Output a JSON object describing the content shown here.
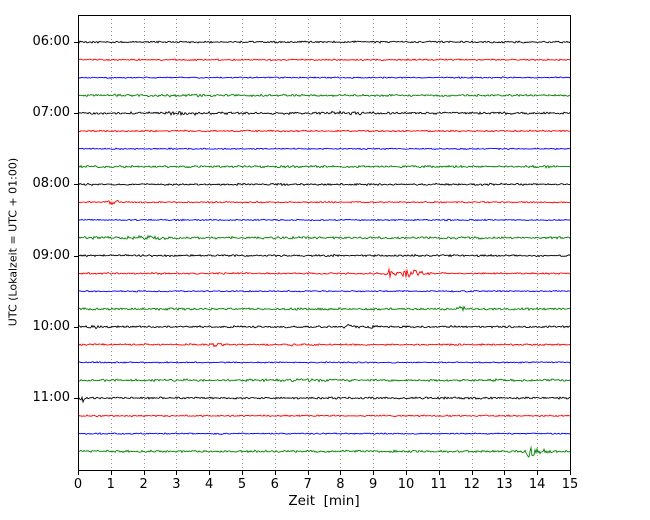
{
  "chart_data": {
    "type": "line",
    "subtype": "helicorder-seismogram",
    "title": "",
    "xlabel": "Zeit  [min]",
    "ylabel": "UTC (Lokalzeit = UTC + 01:00)",
    "x_min": 0,
    "x_max": 15,
    "minutes_per_line": 15,
    "grid": {
      "vertical": true,
      "style": "dotted",
      "color": "#9a9a9a"
    },
    "x_ticks": [
      "0",
      "1",
      "2",
      "3",
      "4",
      "5",
      "6",
      "7",
      "8",
      "9",
      "10",
      "11",
      "12",
      "13",
      "14",
      "15"
    ],
    "hour_labels": [
      "06:00",
      "07:00",
      "08:00",
      "09:00",
      "10:00",
      "11:00"
    ],
    "colors": {
      "black": "#000000",
      "red": "#ff0000",
      "blue": "#0000ff",
      "green": "#008000"
    },
    "traces": [
      {
        "start": "06:00",
        "color": "black",
        "noise": 0.8,
        "events": []
      },
      {
        "start": "06:15",
        "color": "red",
        "noise": 0.7,
        "events": []
      },
      {
        "start": "06:30",
        "color": "blue",
        "noise": 0.6,
        "events": []
      },
      {
        "start": "06:45",
        "color": "green",
        "noise": 0.95,
        "events": [
          {
            "t": 2.6,
            "amp": 0.5,
            "sigma": 0.7
          }
        ]
      },
      {
        "start": "07:00",
        "color": "black",
        "noise": 1.0,
        "events": [
          {
            "t": 3.3,
            "amp": 0.6,
            "sigma": 0.7
          },
          {
            "t": 7.9,
            "amp": 0.9,
            "sigma": 0.45
          }
        ]
      },
      {
        "start": "07:15",
        "color": "red",
        "noise": 0.7,
        "events": []
      },
      {
        "start": "07:30",
        "color": "blue",
        "noise": 0.6,
        "events": []
      },
      {
        "start": "07:45",
        "color": "green",
        "noise": 0.95,
        "events": []
      },
      {
        "start": "08:00",
        "color": "black",
        "noise": 0.85,
        "events": []
      },
      {
        "start": "08:15",
        "color": "red",
        "noise": 0.7,
        "events": [
          {
            "t": 1.05,
            "amp": 2.0,
            "sigma": 0.12
          }
        ]
      },
      {
        "start": "08:30",
        "color": "blue",
        "noise": 0.6,
        "events": []
      },
      {
        "start": "08:45",
        "color": "green",
        "noise": 1.0,
        "events": [
          {
            "t": 2.2,
            "amp": 0.6,
            "sigma": 0.6
          }
        ]
      },
      {
        "start": "09:00",
        "color": "black",
        "noise": 0.85,
        "events": [
          {
            "t": 7.9,
            "amp": 1.6,
            "sigma": 0.1
          }
        ]
      },
      {
        "start": "09:15",
        "color": "red",
        "noise": 0.75,
        "events": [
          {
            "t": 9.45,
            "amp": 3.2,
            "sigma": 0.13
          },
          {
            "t": 10.15,
            "amp": 3.8,
            "sigma": 0.2
          },
          {
            "t": 10.55,
            "amp": 1.4,
            "sigma": 0.12
          }
        ]
      },
      {
        "start": "09:30",
        "color": "blue",
        "noise": 0.6,
        "events": []
      },
      {
        "start": "09:45",
        "color": "green",
        "noise": 0.95,
        "events": [
          {
            "t": 11.7,
            "amp": 1.8,
            "sigma": 0.09
          }
        ]
      },
      {
        "start": "10:00",
        "color": "black",
        "noise": 0.9,
        "events": [
          {
            "t": 0.55,
            "amp": 1.5,
            "sigma": 0.12
          },
          {
            "t": 8.25,
            "amp": 1.3,
            "sigma": 0.15
          },
          {
            "t": 8.9,
            "amp": 1.1,
            "sigma": 0.1
          }
        ]
      },
      {
        "start": "10:15",
        "color": "red",
        "noise": 0.75,
        "events": [
          {
            "t": 4.25,
            "amp": 1.9,
            "sigma": 0.1
          },
          {
            "t": 6.5,
            "amp": 1.9,
            "sigma": 0.09
          }
        ]
      },
      {
        "start": "10:30",
        "color": "blue",
        "noise": 0.6,
        "events": []
      },
      {
        "start": "10:45",
        "color": "green",
        "noise": 1.0,
        "events": [
          {
            "t": 6.8,
            "amp": 0.7,
            "sigma": 0.5
          }
        ]
      },
      {
        "start": "11:00",
        "color": "black",
        "noise": 0.85,
        "events": [
          {
            "t": 0.12,
            "amp": 3.0,
            "sigma": 0.06
          }
        ]
      },
      {
        "start": "11:15",
        "color": "red",
        "noise": 0.7,
        "events": []
      },
      {
        "start": "11:30",
        "color": "blue",
        "noise": 0.6,
        "events": [
          {
            "t": 4.3,
            "amp": 0.9,
            "sigma": 0.07
          }
        ]
      },
      {
        "start": "11:45",
        "color": "green",
        "noise": 0.95,
        "events": [
          {
            "t": 13.8,
            "amp": 7.5,
            "sigma": 0.09
          },
          {
            "t": 14.0,
            "amp": 1.5,
            "sigma": 0.2
          }
        ]
      }
    ]
  }
}
